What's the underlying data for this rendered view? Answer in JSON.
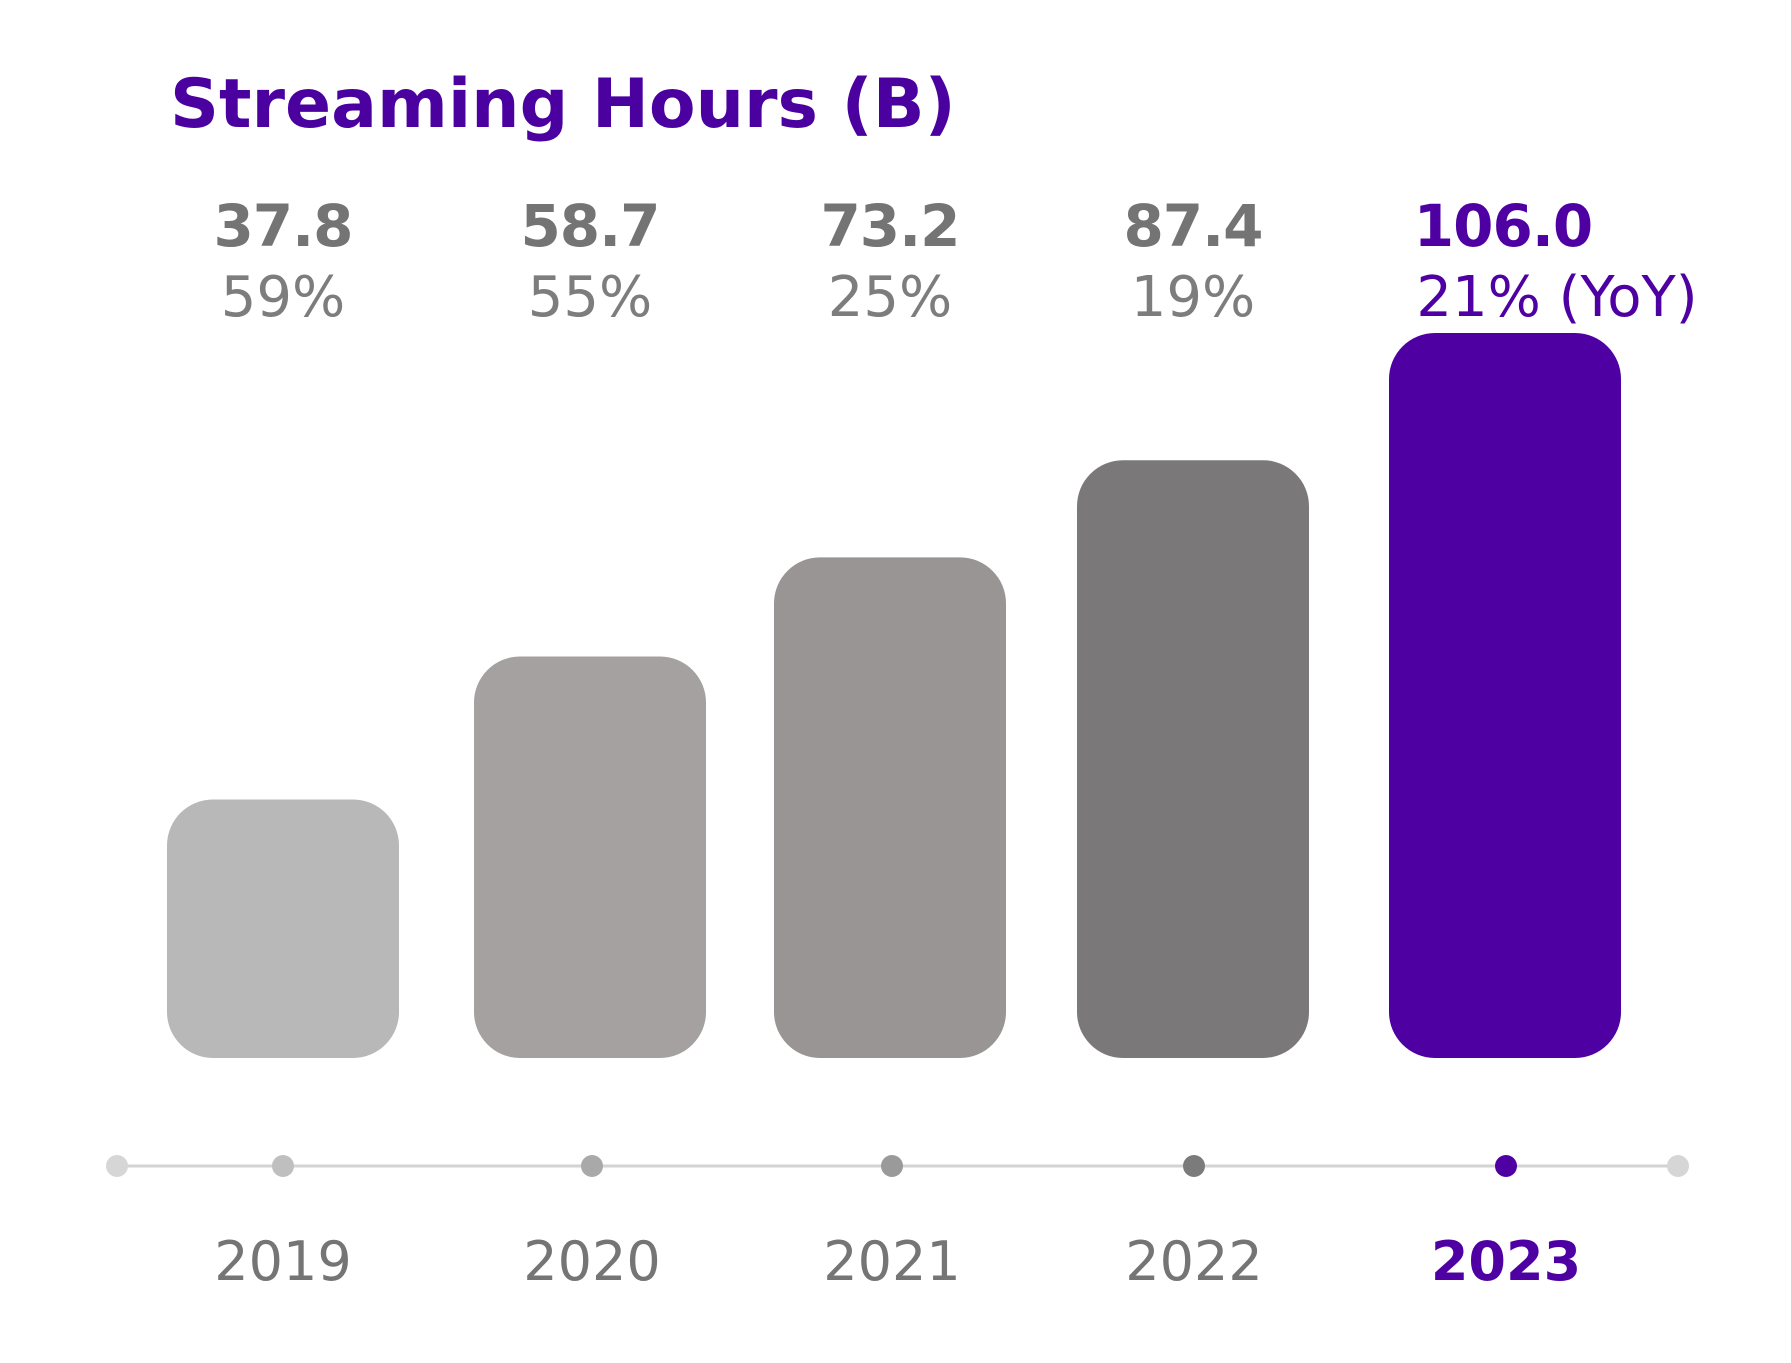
{
  "chart_data": {
    "type": "bar",
    "title": "Streaming Hours (B)",
    "categories": [
      "2019",
      "2020",
      "2021",
      "2022",
      "2023"
    ],
    "values": [
      37.8,
      58.7,
      73.2,
      87.4,
      106.0
    ],
    "value_labels": [
      "37.8",
      "58.7",
      "73.2",
      "87.4",
      "106.0"
    ],
    "growth_labels": [
      "59%",
      "55%",
      "25%",
      "19%",
      "21% (YoY)"
    ],
    "xlabel": "",
    "ylabel": "",
    "ylim": [
      0,
      106.0
    ],
    "grid": false,
    "legend": "none",
    "highlight_index": 4
  },
  "colors": {
    "title": "#4b00a0",
    "highlight": "#4f00a3",
    "bars": [
      "#b9b8b9",
      "#a4a1a0",
      "#999594",
      "#7a7879",
      "#4f00a3"
    ],
    "value_text": "#747474",
    "pct_text": "#7d7d7d",
    "year_text": "#757575",
    "axis_line": "#d3d3d3",
    "axis_end_dot": "#d6d6d6",
    "dots": [
      "#bfbfbf",
      "#a9a9a9",
      "#9a9a9a",
      "#7b7b7b",
      "#4f00a3"
    ]
  }
}
